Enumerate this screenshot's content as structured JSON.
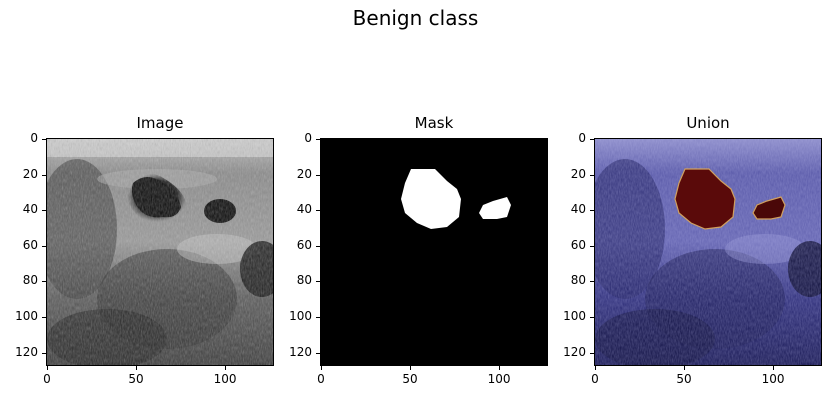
{
  "figure": {
    "suptitle": "Benign class",
    "panels": [
      {
        "id": "image",
        "title": "Image"
      },
      {
        "id": "mask",
        "title": "Mask"
      },
      {
        "id": "union",
        "title": "Union"
      }
    ],
    "axis": {
      "x_ticks": [
        "0",
        "50",
        "100"
      ],
      "x_tick_values": [
        0,
        50,
        100
      ],
      "y_ticks": [
        "0",
        "20",
        "40",
        "60",
        "80",
        "100",
        "120"
      ],
      "y_tick_values": [
        0,
        20,
        40,
        60,
        80,
        100,
        120
      ],
      "range": [
        0,
        128
      ]
    },
    "colors": {
      "mask_foreground": "#ffffff",
      "mask_background": "#000000",
      "union_overlay": "#2a2a8a",
      "union_lesion": "#5a0a0a"
    }
  }
}
